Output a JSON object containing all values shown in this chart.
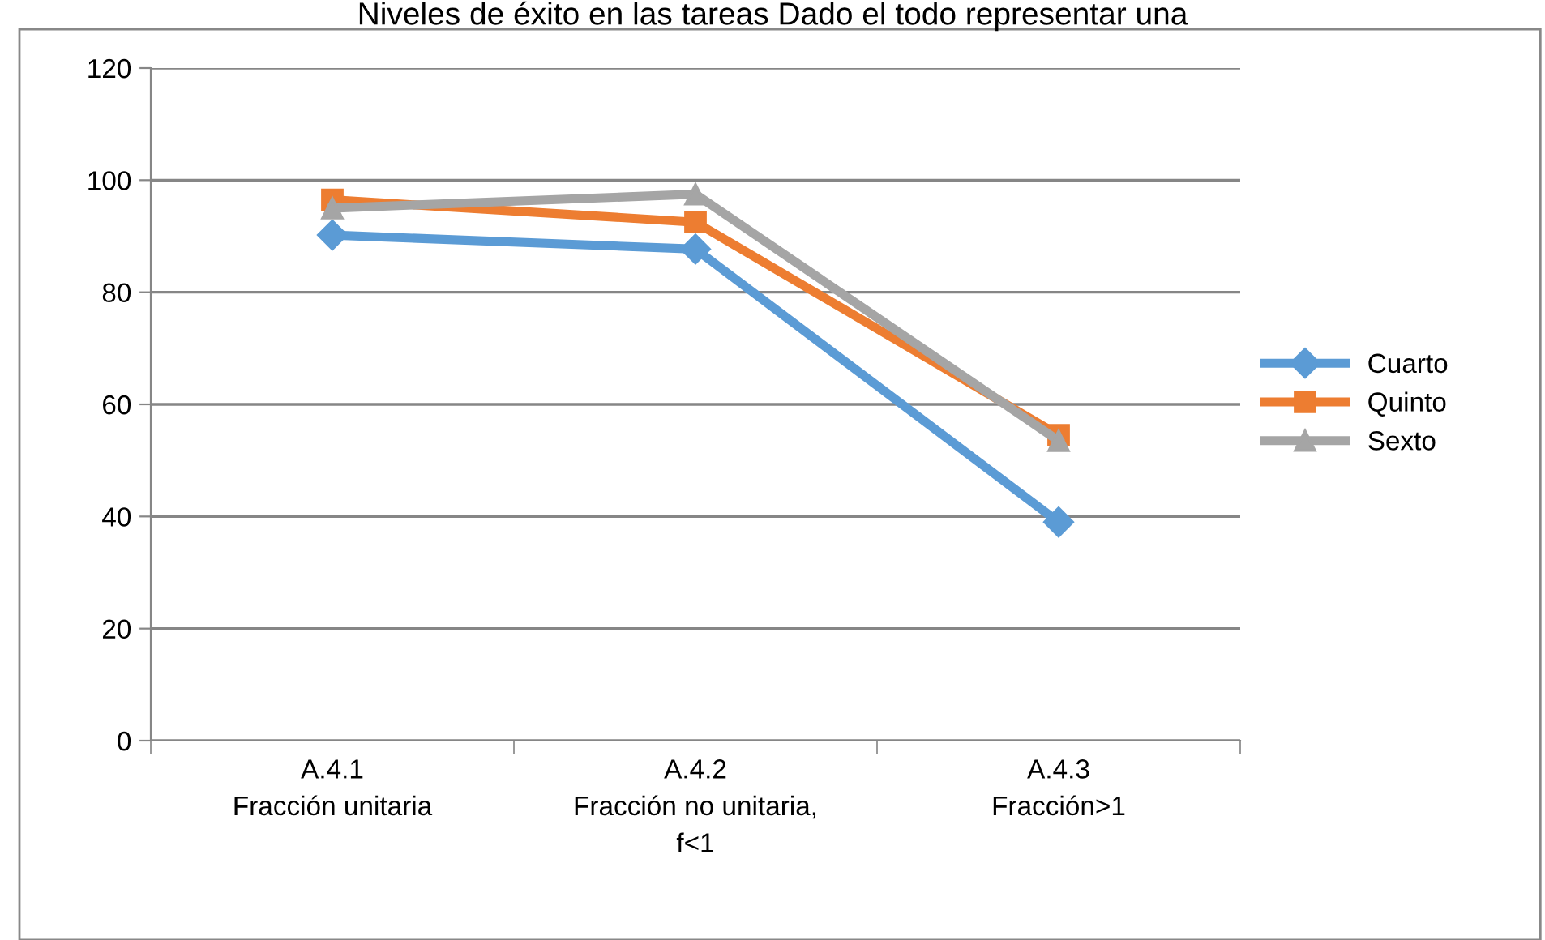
{
  "chart_data": {
    "type": "line",
    "title": "Niveles de éxito en las tareas Dado el todo representar una",
    "categories": [
      "A.4.1\nFracción unitaria",
      "A.4.2\nFracción no unitaria,\nf<1",
      "A.4.3\nFracción>1"
    ],
    "series": [
      {
        "name": "Cuarto",
        "color": "#5b9bd5",
        "values": [
          90.2,
          87.7,
          39
        ],
        "marker": "diamond"
      },
      {
        "name": "Quinto",
        "color": "#ed7d31",
        "values": [
          96.5,
          92.5,
          54.5
        ],
        "marker": "square"
      },
      {
        "name": "Sexto",
        "color": "#a5a5a5",
        "values": [
          95,
          97.5,
          53.5
        ],
        "marker": "triangle"
      }
    ],
    "ylim": [
      0,
      120
    ],
    "yticks": [
      0,
      20,
      40,
      60,
      80,
      100,
      120
    ],
    "grid": "y",
    "legend": "right",
    "line_style": "solid"
  }
}
